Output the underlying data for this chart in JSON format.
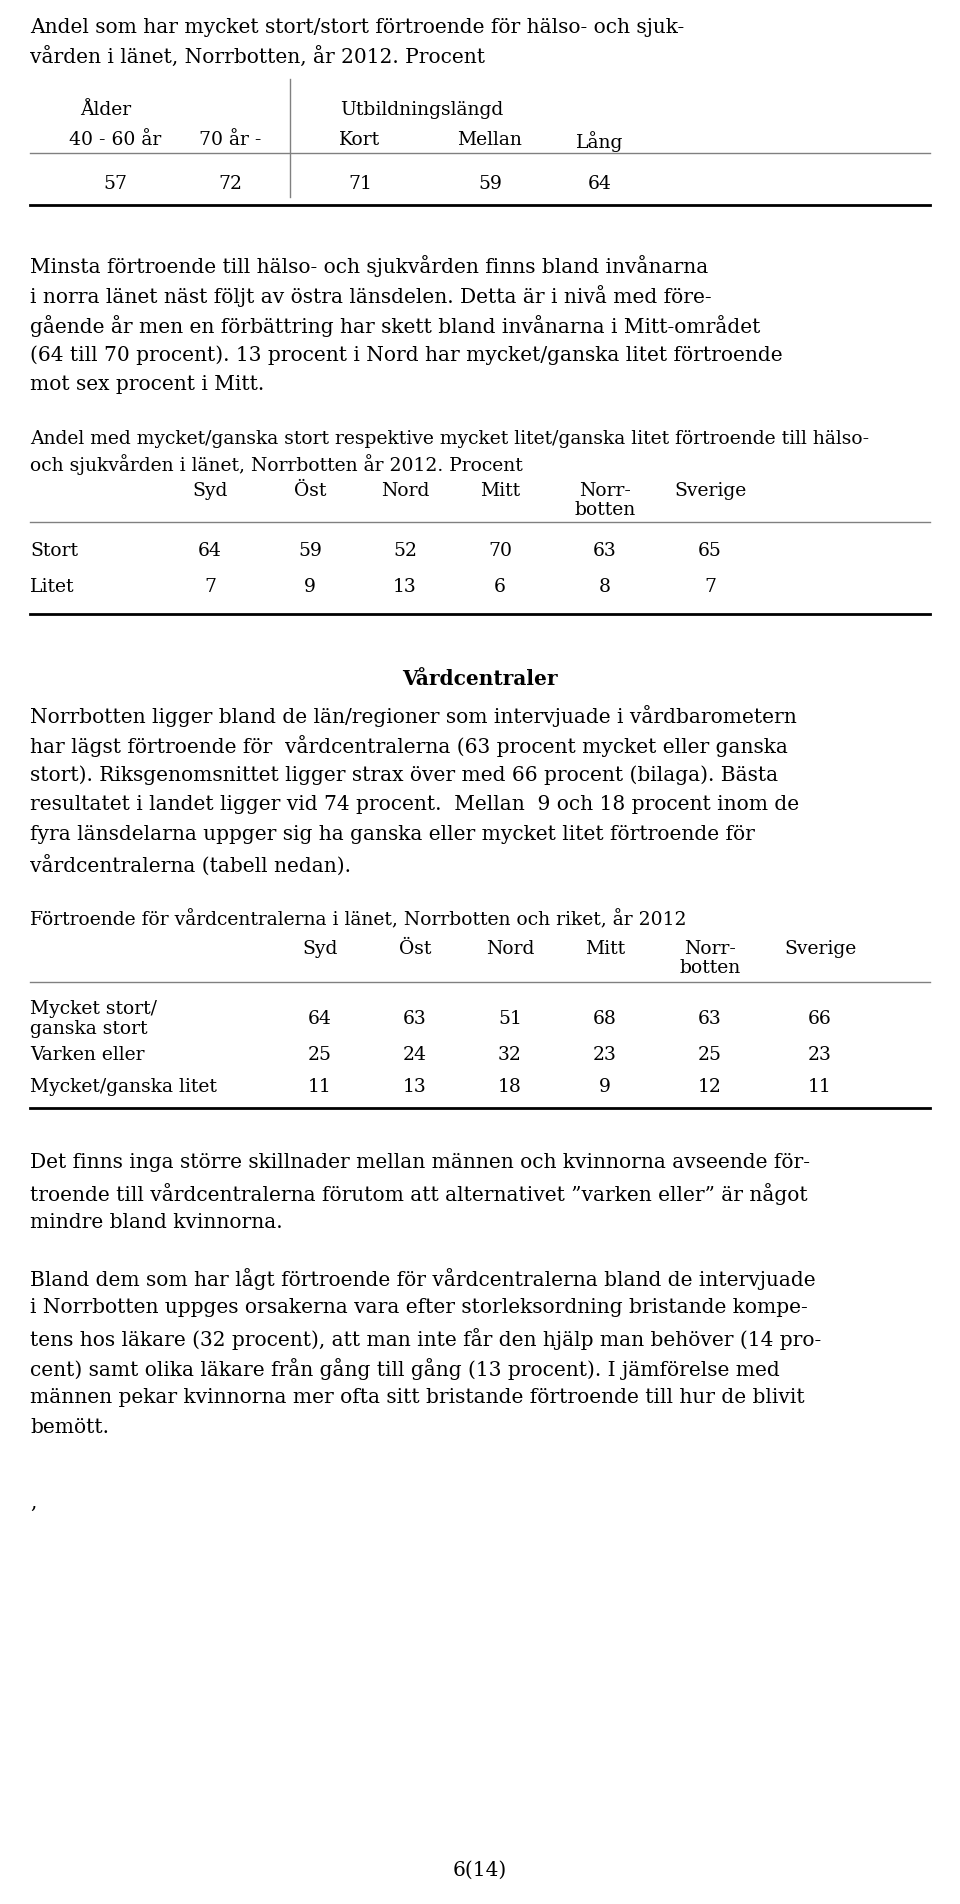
{
  "title1": "Andel som har mycket stort/stort förtroende för hälso- och sjuk-",
  "title2": "vården i länet, Norrbotten, år 2012. Procent",
  "table1_subheader": [
    "40 - 60 år",
    "70 år -",
    "Kort",
    "Mellan",
    "Lång"
  ],
  "table1_values": [
    "57",
    "72",
    "71",
    "59",
    "64"
  ],
  "para1_lines": [
    "Minsta förtroende till hälso- och sjukvården finns bland invånarna",
    "i norra länet näst följt av östra länsdelen. Detta är i nivå med före-",
    "gående år men en förbättring har skett bland invånarna i Mitt-området",
    "(64 till 70 procent). 13 procent i Nord har mycket/ganska litet förtroende",
    "mot sex procent i Mitt."
  ],
  "table2_title1": "Andel med mycket/ganska stort respektive mycket litet/ganska litet förtroende till hälso-",
  "table2_title2": "och sjukvården i länet, Norrbotten år 2012. Procent",
  "table2_cols": [
    "",
    "Syd",
    "Öst",
    "Nord",
    "Mitt",
    "Norr-\nbotten",
    "Sverige"
  ],
  "table2_rows": [
    [
      "Stort",
      "64",
      "59",
      "52",
      "70",
      "63",
      "65"
    ],
    [
      "Litet",
      "7",
      "9",
      "13",
      "6",
      "8",
      "7"
    ]
  ],
  "section_header": "Vårdcentraler",
  "para2_lines": [
    "Norrbotten ligger bland de län/regioner som intervjuade i vårdbarometern",
    "har lägst förtroende för  vårdcentralerna (63 procent mycket eller ganska",
    "stort). Riksgenomsnittet ligger strax över med 66 procent (bilaga). Bästa",
    "resultatet i landet ligger vid 74 procent.  Mellan  9 och 18 procent inom de",
    "fyra länsdelarna uppger sig ha ganska eller mycket litet förtroende för",
    "vårdcentralerna (tabell nedan)."
  ],
  "table3_title": "Förtroende för vårdcentralerna i länet, Norrbotten och riket, år 2012",
  "table3_rows": [
    [
      "Mycket stort/\nganska stort",
      "64",
      "63",
      "51",
      "68",
      "63",
      "66"
    ],
    [
      "Varken eller",
      "25",
      "24",
      "32",
      "23",
      "25",
      "23"
    ],
    [
      "Mycket/ganska litet",
      "11",
      "13",
      "18",
      "9",
      "12",
      "11"
    ]
  ],
  "para3_lines": [
    "Det finns inga större skillnader mellan männen och kvinnorna avseende för-",
    "troende till vårdcentralerna förutom att alternativet ”varken eller” är något",
    "mindre bland kvinnorna."
  ],
  "para4_lines": [
    "Bland dem som har lågt förtroende för vårdcentralerna bland de intervjuade",
    "i Norrbotten uppges orsakerna vara efter storleksordning bristande kompe-",
    "tens hos läkare (32 procent), att man inte får den hjälp man behöver (14 pro-",
    "cent) samt olika läkare från gång till gång (13 procent). I jämförelse med",
    "männen pekar kvinnorna mer ofta sitt bristande förtroende till hur de blivit",
    "bemött."
  ],
  "footnote": ",",
  "page": "6(14)",
  "bg_color": "#ffffff",
  "text_color": "#000000"
}
